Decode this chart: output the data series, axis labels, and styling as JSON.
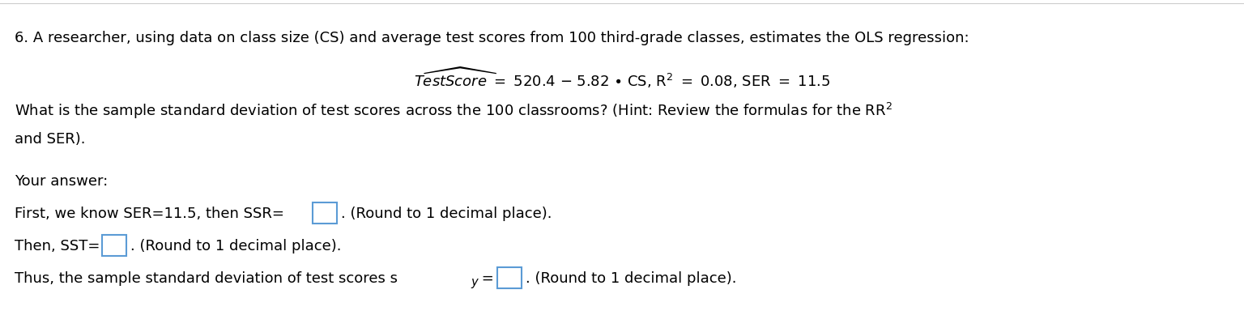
{
  "background_color": "#ffffff",
  "line1": "6. A researcher, using data on class size (CS) and average test scores from 100 third-grade classes, estimates the OLS regression:",
  "line3_part1": "What is the sample standard deviation of test scores across the 100 classrooms? (Hint: Review the formulas for the R",
  "line4": "and SER).",
  "line5": "Your answer:",
  "line6_pre": "First, we know SER=11.5, then SSR=",
  "line6_post": ". (Round to 1 decimal place).",
  "line7_pre": "Then, SST=",
  "line7_post": ". (Round to 1 decimal place).",
  "line8_pre": "Thus, the sample standard deviation of test scores s",
  "line8_post": ". (Round to 1 decimal place).",
  "text_color": "#000000",
  "box_color": "#5b9bd5",
  "fig_width": 15.36,
  "fig_height": 4.06,
  "fontsize": 13.0
}
